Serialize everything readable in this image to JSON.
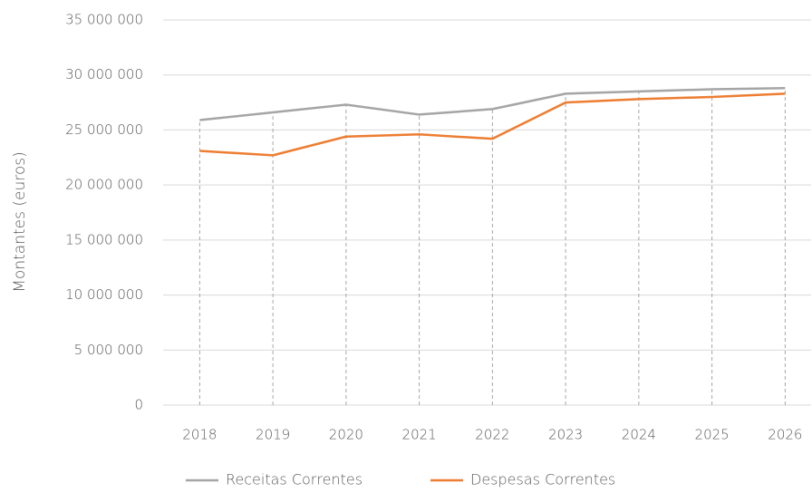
{
  "chart_data": {
    "type": "line",
    "ylabel": "Montantes (euros)",
    "categories": [
      "2018",
      "2019",
      "2020",
      "2021",
      "2022",
      "2023",
      "2024",
      "2025",
      "2026"
    ],
    "series": [
      {
        "name": "Receitas Correntes",
        "color": "#a5a5a5",
        "values": [
          25900000,
          26600000,
          27300000,
          26400000,
          26900000,
          28300000,
          28500000,
          28700000,
          28800000
        ]
      },
      {
        "name": "Despesas Correntes",
        "color": "#ed7d31",
        "values": [
          23100000,
          22700000,
          24400000,
          24600000,
          24200000,
          27500000,
          27800000,
          28000000,
          28300000
        ]
      }
    ],
    "ylim": [
      0,
      35000000
    ],
    "yticks": [
      0,
      {
        "value": 5000000,
        "label": "5 000 000"
      },
      {
        "value": 10000000,
        "label": "10 000 000"
      },
      {
        "value": 15000000,
        "label": "15 000 000"
      },
      {
        "value": 20000000,
        "label": "20 000 000"
      },
      {
        "value": 25000000,
        "label": "25 000 000"
      },
      {
        "value": 30000000,
        "label": "30 000 000"
      },
      {
        "value": 35000000,
        "label": "35 000 000"
      }
    ],
    "grid": true,
    "legend": "bottom"
  }
}
